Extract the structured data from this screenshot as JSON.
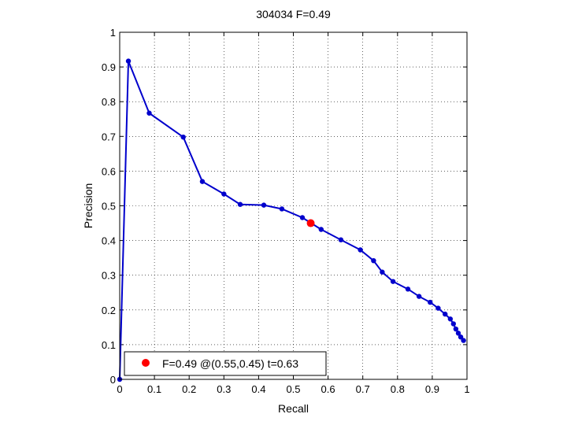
{
  "chart_data": {
    "type": "line",
    "title": "304034 F=0.49",
    "xlabel": "Recall",
    "ylabel": "Precision",
    "xlim": [
      0,
      1
    ],
    "ylim": [
      0,
      1
    ],
    "grid": true,
    "xticks": [
      "0",
      "0.1",
      "0.2",
      "0.3",
      "0.4",
      "0.5",
      "0.6",
      "0.7",
      "0.8",
      "0.9",
      "1"
    ],
    "yticks": [
      "0",
      "0.1",
      "0.2",
      "0.3",
      "0.4",
      "0.5",
      "0.6",
      "0.7",
      "0.8",
      "0.9",
      "1"
    ],
    "series": [
      {
        "color": "#0000cc",
        "points": [
          [
            0.0,
            0.0
          ],
          [
            0.025,
            0.917
          ],
          [
            0.085,
            0.767
          ],
          [
            0.183,
            0.698
          ],
          [
            0.238,
            0.57
          ],
          [
            0.3,
            0.534
          ],
          [
            0.347,
            0.504
          ],
          [
            0.415,
            0.502
          ],
          [
            0.467,
            0.491
          ],
          [
            0.526,
            0.466
          ],
          [
            0.58,
            0.432
          ],
          [
            0.637,
            0.402
          ],
          [
            0.693,
            0.373
          ],
          [
            0.731,
            0.342
          ],
          [
            0.756,
            0.309
          ],
          [
            0.787,
            0.282
          ],
          [
            0.83,
            0.26
          ],
          [
            0.862,
            0.239
          ],
          [
            0.894,
            0.222
          ],
          [
            0.917,
            0.205
          ],
          [
            0.937,
            0.188
          ],
          [
            0.952,
            0.174
          ],
          [
            0.961,
            0.16
          ],
          [
            0.968,
            0.145
          ],
          [
            0.975,
            0.133
          ],
          [
            0.982,
            0.122
          ],
          [
            0.99,
            0.112
          ]
        ]
      }
    ],
    "highlight": {
      "x": 0.55,
      "y": 0.45,
      "color": "#ff0000"
    },
    "legend": {
      "location": "bottom-left",
      "text": "F=0.49 @(0.55,0.45) t=0.63"
    }
  }
}
